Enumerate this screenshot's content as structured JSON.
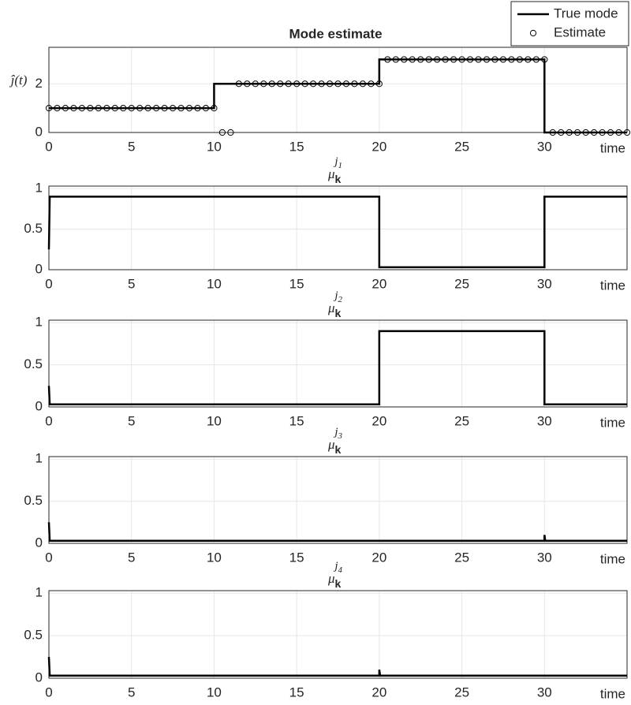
{
  "chart_data": [
    {
      "type": "line",
      "title": "Mode estimate",
      "ylabel": "ĵ(t)",
      "xlabel": "time",
      "xlim": [
        0,
        35
      ],
      "xticks": [
        0,
        5,
        10,
        15,
        20,
        25,
        30
      ],
      "ylim": [
        0,
        3.5
      ],
      "yticks": [
        0,
        2
      ],
      "grid": true,
      "legend": "top-right",
      "series": [
        {
          "name": "True mode",
          "style": "line",
          "color": "#000000",
          "x": [
            0,
            10,
            10,
            20,
            20,
            30,
            30,
            35
          ],
          "values": [
            1,
            1,
            2,
            2,
            3,
            3,
            0,
            0
          ]
        },
        {
          "name": "Estimate",
          "style": "markers",
          "color": "#000000",
          "x": [
            0,
            0.5,
            1,
            1.5,
            2,
            2.5,
            3,
            3.5,
            4,
            4.5,
            5,
            5.5,
            6,
            6.5,
            7,
            7.5,
            8,
            8.5,
            9,
            9.5,
            10,
            10.5,
            11,
            11.5,
            12,
            12.5,
            13,
            13.5,
            14,
            14.5,
            15,
            15.5,
            16,
            16.5,
            17,
            17.5,
            18,
            18.5,
            19,
            19.5,
            20,
            20.5,
            21,
            21.5,
            22,
            22.5,
            23,
            23.5,
            24,
            24.5,
            25,
            25.5,
            26,
            26.5,
            27,
            27.5,
            28,
            28.5,
            29,
            29.5,
            30,
            30.5,
            31,
            31.5,
            32,
            32.5,
            33,
            33.5,
            34,
            34.5,
            35
          ],
          "values": [
            1,
            1,
            1,
            1,
            1,
            1,
            1,
            1,
            1,
            1,
            1,
            1,
            1,
            1,
            1,
            1,
            1,
            1,
            1,
            1,
            1,
            0,
            0,
            2,
            2,
            2,
            2,
            2,
            2,
            2,
            2,
            2,
            2,
            2,
            2,
            2,
            2,
            2,
            2,
            2,
            2,
            3,
            3,
            3,
            3,
            3,
            3,
            3,
            3,
            3,
            3,
            3,
            3,
            3,
            3,
            3,
            3,
            3,
            3,
            3,
            3,
            0,
            0,
            0,
            0,
            0,
            0,
            0,
            0,
            0,
            0
          ]
        }
      ]
    },
    {
      "type": "line",
      "title": {
        "symbol": "μ",
        "subscript": "k",
        "superscript": "j",
        "superscript_index": "1"
      },
      "xlabel": "time",
      "xlim": [
        0,
        35
      ],
      "xticks": [
        0,
        5,
        10,
        15,
        20,
        25,
        30
      ],
      "ylim": [
        0,
        1.03
      ],
      "yticks": [
        0,
        0.5,
        1
      ],
      "grid": true,
      "series": [
        {
          "style": "line",
          "color": "#000000",
          "x": [
            0,
            0.05,
            20,
            20,
            30,
            30,
            35
          ],
          "values": [
            0.25,
            0.9,
            0.9,
            0.03,
            0.03,
            0.9,
            0.9
          ]
        }
      ]
    },
    {
      "type": "line",
      "title": {
        "symbol": "μ",
        "subscript": "k",
        "superscript": "j",
        "superscript_index": "2"
      },
      "xlabel": "time",
      "xlim": [
        0,
        35
      ],
      "xticks": [
        0,
        5,
        10,
        15,
        20,
        25,
        30
      ],
      "ylim": [
        0,
        1.03
      ],
      "yticks": [
        0,
        0.5,
        1
      ],
      "grid": true,
      "series": [
        {
          "style": "line",
          "color": "#000000",
          "x": [
            0,
            0.05,
            20,
            20,
            30,
            30,
            35
          ],
          "values": [
            0.25,
            0.03,
            0.03,
            0.9,
            0.9,
            0.03,
            0.03
          ]
        }
      ]
    },
    {
      "type": "line",
      "title": {
        "symbol": "μ",
        "subscript": "k",
        "superscript": "j",
        "superscript_index": "3"
      },
      "xlabel": "time",
      "xlim": [
        0,
        35
      ],
      "xticks": [
        0,
        5,
        10,
        15,
        20,
        25,
        30
      ],
      "ylim": [
        0,
        1.03
      ],
      "yticks": [
        0,
        0.5,
        1
      ],
      "grid": true,
      "series": [
        {
          "style": "line",
          "color": "#000000",
          "x": [
            0,
            0.05,
            30,
            30,
            30.05,
            35
          ],
          "values": [
            0.25,
            0.03,
            0.03,
            0.1,
            0.03,
            0.03
          ]
        }
      ]
    },
    {
      "type": "line",
      "title": {
        "symbol": "μ",
        "subscript": "k",
        "superscript": "j",
        "superscript_index": "4"
      },
      "xlabel": "time",
      "xlim": [
        0,
        35
      ],
      "xticks": [
        0,
        5,
        10,
        15,
        20,
        25,
        30
      ],
      "ylim": [
        0,
        1.03
      ],
      "yticks": [
        0,
        0.5,
        1
      ],
      "grid": true,
      "series": [
        {
          "style": "line",
          "color": "#000000",
          "x": [
            0,
            0.05,
            20,
            20,
            20.05,
            35
          ],
          "values": [
            0.25,
            0.03,
            0.03,
            0.1,
            0.03,
            0.03
          ]
        }
      ]
    }
  ]
}
